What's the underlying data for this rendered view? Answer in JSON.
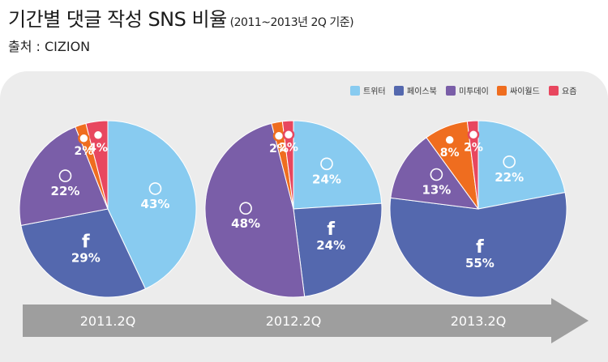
{
  "title": "기간별 댓글 작성 SNS 비율",
  "subtitle": "(2011~2013년 2Q 기준)",
  "source": "출처 : CIZION",
  "colors": {
    "트위터": "#88cbf0",
    "페이스북": "#5468ae",
    "미투데이": "#7a5ea8",
    "싸이월드": "#ef6d1f",
    "요즘": "#e8475f"
  },
  "chart_data": {
    "type": "pie",
    "legend_position": "top-right",
    "legend": [
      "트위터",
      "페이스북",
      "미투데이",
      "싸이월드",
      "요즘"
    ],
    "pies": [
      {
        "label": "2011.2Q",
        "slices": [
          {
            "name": "트위터",
            "value": 43,
            "label": "43%"
          },
          {
            "name": "페이스북",
            "value": 29,
            "label": "29%"
          },
          {
            "name": "미투데이",
            "value": 22,
            "label": "22%"
          },
          {
            "name": "싸이월드",
            "value": 2,
            "label": "2%"
          },
          {
            "name": "요즘",
            "value": 4,
            "label": "4%"
          }
        ]
      },
      {
        "label": "2012.2Q",
        "slices": [
          {
            "name": "트위터",
            "value": 24,
            "label": "24%"
          },
          {
            "name": "페이스북",
            "value": 24,
            "label": "24%"
          },
          {
            "name": "미투데이",
            "value": 48,
            "label": "48%"
          },
          {
            "name": "싸이월드",
            "value": 2,
            "label": "2%"
          },
          {
            "name": "요즘",
            "value": 2,
            "label": "2%"
          }
        ]
      },
      {
        "label": "2013.2Q",
        "slices": [
          {
            "name": "트위터",
            "value": 22,
            "label": "22%"
          },
          {
            "name": "페이스북",
            "value": 55,
            "label": "55%"
          },
          {
            "name": "미투데이",
            "value": 13,
            "label": "13%"
          },
          {
            "name": "싸이월드",
            "value": 8,
            "label": "8%"
          },
          {
            "name": "요즘",
            "value": 2,
            "label": "2%"
          }
        ]
      }
    ]
  }
}
